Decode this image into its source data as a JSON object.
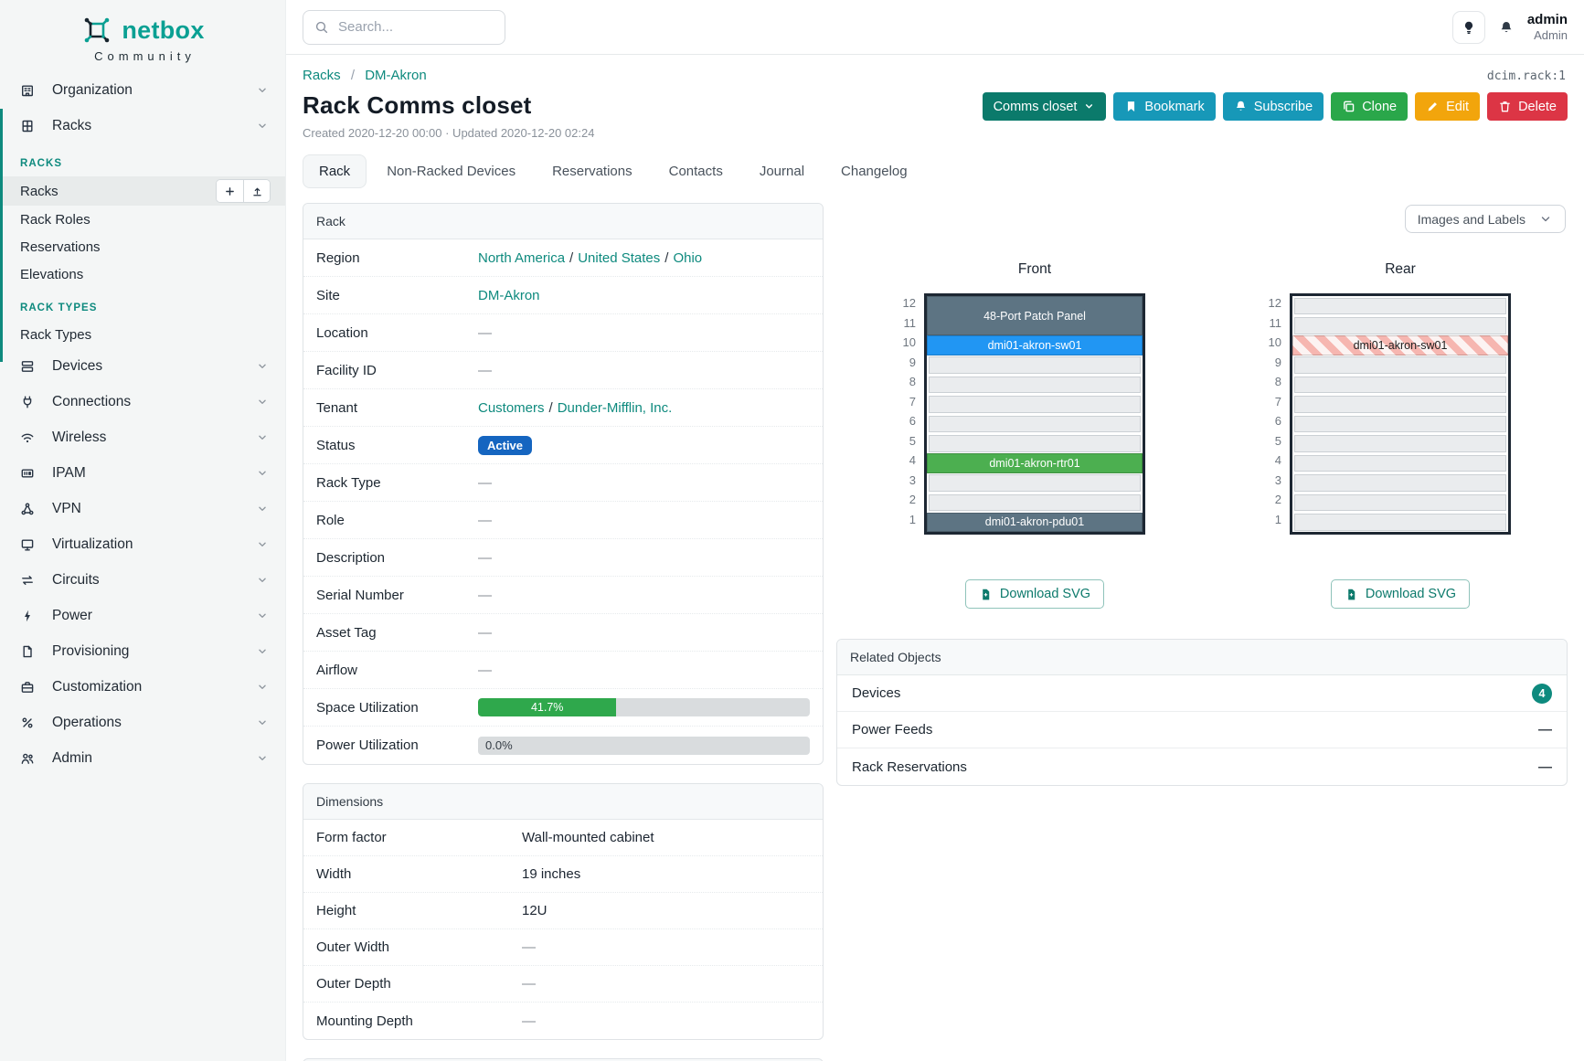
{
  "brand": {
    "name": "netbox",
    "tagline": "Community"
  },
  "topbar": {
    "search_placeholder": "Search...",
    "user_name": "admin",
    "user_role": "Admin"
  },
  "object_id": "dcim.rack:1",
  "breadcrumb": {
    "root": "Racks",
    "separator": "/",
    "current": "DM-Akron"
  },
  "page": {
    "title": "Rack Comms closet",
    "meta": "Created 2020-12-20 00:00 · Updated 2020-12-20 02:24"
  },
  "actions": [
    {
      "id": "rename",
      "label": "Comms closet",
      "color": "#0b7a6b",
      "icon": null,
      "chevron": true
    },
    {
      "id": "bookmark",
      "label": "Bookmark",
      "color": "#1798b8",
      "icon": "bookmark"
    },
    {
      "id": "subscribe",
      "label": "Subscribe",
      "color": "#1798b8",
      "icon": "bellfill"
    },
    {
      "id": "clone",
      "label": "Clone",
      "color": "#2aa74a",
      "icon": "copy"
    },
    {
      "id": "edit",
      "label": "Edit",
      "color": "#f2a50c",
      "icon": "pencil"
    },
    {
      "id": "delete",
      "label": "Delete",
      "color": "#dc3545",
      "icon": "trash"
    }
  ],
  "tabs": [
    {
      "label": "Rack",
      "active": true
    },
    {
      "label": "Non-Racked Devices"
    },
    {
      "label": "Reservations"
    },
    {
      "label": "Contacts"
    },
    {
      "label": "Journal"
    },
    {
      "label": "Changelog"
    }
  ],
  "sidebar": {
    "top_items": [
      {
        "label": "Organization",
        "icon": "organization"
      },
      {
        "label": "Racks",
        "icon": "racks",
        "expanded": true
      }
    ],
    "groups": [
      {
        "header": "RACKS",
        "items": [
          {
            "label": "Racks",
            "active": true,
            "buttons": [
              "add",
              "import"
            ]
          },
          {
            "label": "Rack Roles"
          },
          {
            "label": "Reservations"
          },
          {
            "label": "Elevations"
          }
        ]
      },
      {
        "header": "RACK TYPES",
        "items": [
          {
            "label": "Rack Types"
          }
        ]
      }
    ],
    "menu": [
      {
        "label": "Devices",
        "icon": "devices"
      },
      {
        "label": "Connections",
        "icon": "connections"
      },
      {
        "label": "Wireless",
        "icon": "wireless"
      },
      {
        "label": "IPAM",
        "icon": "ipam"
      },
      {
        "label": "VPN",
        "icon": "vpn"
      },
      {
        "label": "Virtualization",
        "icon": "virtualization"
      },
      {
        "label": "Circuits",
        "icon": "circuits"
      },
      {
        "label": "Power",
        "icon": "power"
      },
      {
        "label": "Provisioning",
        "icon": "provisioning"
      },
      {
        "label": "Customization",
        "icon": "customization"
      },
      {
        "label": "Operations",
        "icon": "operations"
      },
      {
        "label": "Admin",
        "icon": "admin"
      }
    ]
  },
  "rack_panel": {
    "title": "Rack",
    "rows": [
      {
        "label": "Region",
        "type": "links",
        "parts": [
          "North America",
          "United States",
          "Ohio"
        ]
      },
      {
        "label": "Site",
        "type": "links",
        "parts": [
          "DM-Akron"
        ]
      },
      {
        "label": "Location",
        "type": "dash",
        "value": "—"
      },
      {
        "label": "Facility ID",
        "type": "dash",
        "value": "—"
      },
      {
        "label": "Tenant",
        "type": "links",
        "parts": [
          "Customers",
          "Dunder-Mifflin, Inc."
        ]
      },
      {
        "label": "Status",
        "type": "badge",
        "value": "Active",
        "color": "#1565c0"
      },
      {
        "label": "Rack Type",
        "type": "dash",
        "value": "—"
      },
      {
        "label": "Role",
        "type": "dash",
        "value": "—"
      },
      {
        "label": "Description",
        "type": "dash",
        "value": "—"
      },
      {
        "label": "Serial Number",
        "type": "dash",
        "value": "—"
      },
      {
        "label": "Asset Tag",
        "type": "dash",
        "value": "—"
      },
      {
        "label": "Airflow",
        "type": "dash",
        "value": "—"
      },
      {
        "label": "Space Utilization",
        "type": "progress",
        "display": "41.7%",
        "percent": 41.7,
        "fill": "#2fa84c"
      },
      {
        "label": "Power Utilization",
        "type": "progress",
        "display": "0.0%",
        "percent": 0,
        "fill": "#2fa84c"
      }
    ]
  },
  "dimensions_panel": {
    "title": "Dimensions",
    "rows": [
      {
        "label": "Form factor",
        "value": "Wall-mounted cabinet"
      },
      {
        "label": "Width",
        "value": "19 inches"
      },
      {
        "label": "Height",
        "value": "12U"
      },
      {
        "label": "Outer Width",
        "value": "—",
        "dash": true
      },
      {
        "label": "Outer Depth",
        "value": "—",
        "dash": true
      },
      {
        "label": "Mounting Depth",
        "value": "—",
        "dash": true
      }
    ]
  },
  "elevation": {
    "view_mode": "Images and Labels",
    "download_label": "Download SVG",
    "units_total": 12,
    "front": {
      "title": "Front",
      "devices": [
        {
          "name": "48-Port Patch Panel",
          "unit": 11,
          "u_height": 2,
          "color": "#5d7483",
          "text": "#ffffff"
        },
        {
          "name": "dmi01-akron-sw01",
          "unit": 10,
          "u_height": 1,
          "color": "#2196f3",
          "text": "#ffffff"
        },
        {
          "name": "dmi01-akron-rtr01",
          "unit": 4,
          "u_height": 1,
          "color": "#4caf50",
          "text": "#ffffff"
        },
        {
          "name": "dmi01-akron-pdu01",
          "unit": 1,
          "u_height": 1,
          "color": "#5d7483",
          "text": "#ffffff"
        }
      ]
    },
    "rear": {
      "title": "Rear",
      "devices": [
        {
          "name": "dmi01-akron-sw01",
          "unit": 10,
          "u_height": 1,
          "striped": true,
          "text": "#222222"
        }
      ]
    }
  },
  "related_panel": {
    "title": "Related Objects",
    "rows": [
      {
        "label": "Devices",
        "count": "4",
        "badge_color": "#0e8a7e"
      },
      {
        "label": "Power Feeds",
        "value": "—"
      },
      {
        "label": "Rack Reservations",
        "value": "—"
      }
    ]
  }
}
